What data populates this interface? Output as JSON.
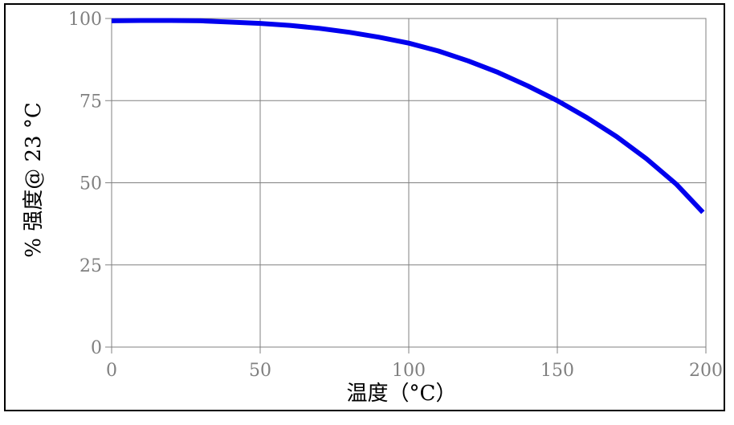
{
  "chart_data": {
    "type": "line",
    "title": "",
    "xlabel": "温度（°C）",
    "ylabel": "% 强度@ 23 °C",
    "xlim": [
      0,
      200
    ],
    "ylim": [
      0,
      100
    ],
    "x_ticks": [
      "0",
      "50",
      "100",
      "150",
      "200"
    ],
    "y_ticks": [
      "0",
      "25",
      "50",
      "75",
      "100"
    ],
    "grid": true,
    "line_color": "#0000ee",
    "grid_color": "#808080",
    "series": [
      {
        "x": [
          0,
          10,
          20,
          30,
          40,
          50,
          60,
          70,
          80,
          90,
          100,
          110,
          120,
          130,
          140,
          150,
          160,
          170,
          180,
          190,
          199
        ],
        "y": [
          99.3,
          99.4,
          99.4,
          99.3,
          98.9,
          98.5,
          97.9,
          97.0,
          95.8,
          94.3,
          92.5,
          90.1,
          87.1,
          83.6,
          79.5,
          75.0,
          69.8,
          64.0,
          57.3,
          49.6,
          41.0
        ]
      }
    ]
  }
}
